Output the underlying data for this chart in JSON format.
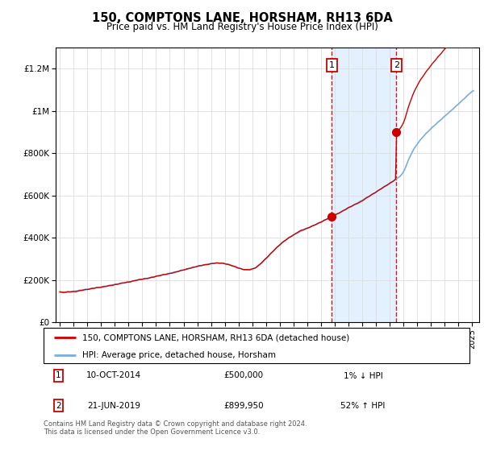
{
  "title": "150, COMPTONS LANE, HORSHAM, RH13 6DA",
  "subtitle": "Price paid vs. HM Land Registry's House Price Index (HPI)",
  "footer": "Contains HM Land Registry data © Crown copyright and database right 2024.\nThis data is licensed under the Open Government Licence v3.0.",
  "legend_line1": "150, COMPTONS LANE, HORSHAM, RH13 6DA (detached house)",
  "legend_line2": "HPI: Average price, detached house, Horsham",
  "annotation1_date": "10-OCT-2014",
  "annotation1_price": "£500,000",
  "annotation1_change": "1% ↓ HPI",
  "annotation2_date": "21-JUN-2019",
  "annotation2_price": "£899,950",
  "annotation2_change": "52% ↑ HPI",
  "hpi_color": "#7aaddc",
  "price_color": "#cc0000",
  "annotation_vline_color": "#cc0000",
  "shaded_region_color": "#ddeeff",
  "background_color": "#ffffff",
  "grid_color": "#dddddd",
  "ylim": [
    0,
    1300000
  ],
  "yticks": [
    0,
    200000,
    400000,
    600000,
    800000,
    1000000,
    1200000
  ],
  "ytick_labels": [
    "£0",
    "£200K",
    "£400K",
    "£600K",
    "£800K",
    "£1M",
    "£1.2M"
  ],
  "sale1_x": 2014.78,
  "sale1_price": 500000,
  "sale2_x": 2019.47,
  "sale2_price": 899950
}
